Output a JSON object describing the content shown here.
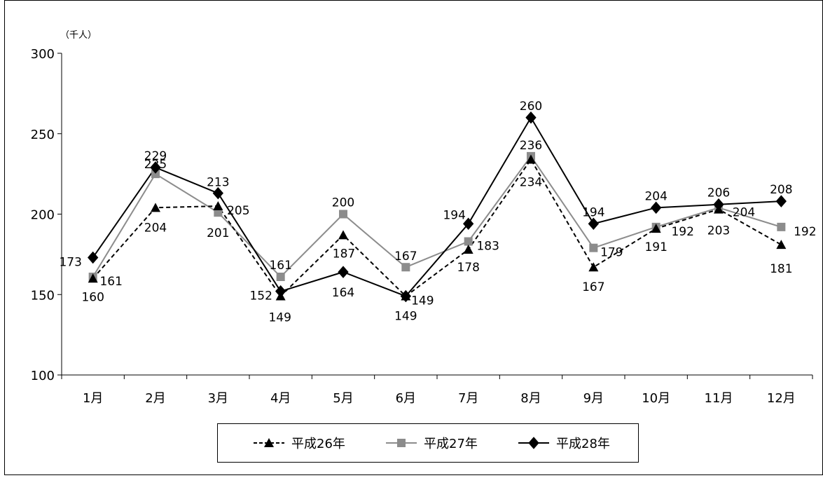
{
  "chart_data": {
    "type": "line",
    "unit_label": "（千人）",
    "categories": [
      "1月",
      "2月",
      "3月",
      "4月",
      "5月",
      "6月",
      "7月",
      "8月",
      "9月",
      "10月",
      "11月",
      "12月"
    ],
    "ylim": [
      100,
      300
    ],
    "yticks": [
      100,
      150,
      200,
      250,
      300
    ],
    "grid": false,
    "legend_position": "bottom",
    "series": [
      {
        "name": "平成26年",
        "values": [
          160,
          204,
          205,
          149,
          187,
          149,
          178,
          234,
          167,
          191,
          203,
          181
        ],
        "color": "#000000",
        "dashed": true,
        "marker": "triangle"
      },
      {
        "name": "平成27年",
        "values": [
          161,
          225,
          201,
          161,
          200,
          167,
          183,
          236,
          179,
          192,
          204,
          192
        ],
        "color": "#8c8c8c",
        "dashed": false,
        "marker": "square"
      },
      {
        "name": "平成28年",
        "values": [
          173,
          229,
          213,
          152,
          164,
          149,
          194,
          260,
          194,
          204,
          206,
          208
        ],
        "color": "#000000",
        "dashed": false,
        "marker": "diamond"
      }
    ]
  }
}
